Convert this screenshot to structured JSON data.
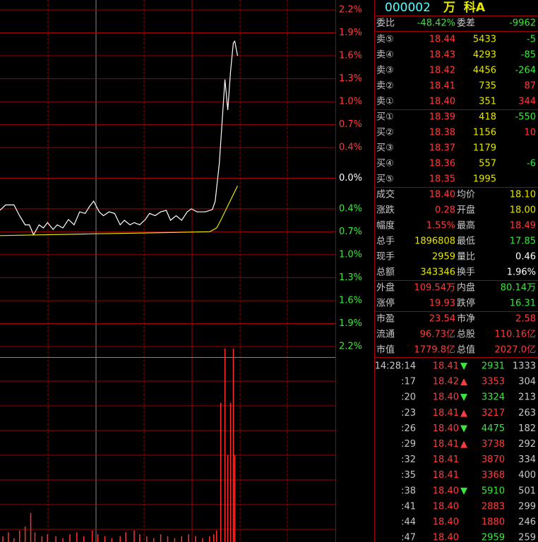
{
  "chart_data": [
    {
      "type": "line",
      "xlim": [
        0,
        240
      ],
      "ylim": [
        -2.2,
        2.2
      ],
      "yticks": [
        {
          "value": 2.2,
          "label": "2.2%"
        },
        {
          "value": 1.9,
          "label": "1.9%"
        },
        {
          "value": 1.6,
          "label": "1.6%"
        },
        {
          "value": 1.3,
          "label": "1.3%"
        },
        {
          "value": 1.0,
          "label": "1.0%"
        },
        {
          "value": 0.7,
          "label": "0.7%"
        },
        {
          "value": 0.4,
          "label": "0.4%"
        },
        {
          "value": 0,
          "label": "0.0%"
        },
        {
          "value": -0.4,
          "label": "0.4%"
        },
        {
          "value": -0.7,
          "label": "0.7%"
        },
        {
          "value": -1.0,
          "label": "1.0%"
        },
        {
          "value": -1.3,
          "label": "1.3%"
        },
        {
          "value": -1.6,
          "label": "1.6%"
        },
        {
          "value": -1.9,
          "label": "1.9%"
        },
        {
          "value": -2.2,
          "label": "2.2%"
        }
      ],
      "grid": true,
      "series": [
        {
          "color": "#ffffff",
          "x": [
            0,
            4,
            10,
            14,
            18,
            21,
            24,
            28,
            31,
            34,
            38,
            41,
            45,
            49,
            53,
            57,
            61,
            64,
            67,
            71,
            74,
            78,
            82,
            86,
            89,
            93,
            96,
            100,
            104,
            107,
            111,
            115,
            119,
            122,
            126,
            130,
            134,
            137,
            141,
            147,
            152,
            154,
            157,
            161,
            163,
            165,
            167,
            168,
            170
          ],
          "values": [
            -0.42,
            -0.35,
            -0.35,
            -0.49,
            -0.61,
            -0.61,
            -0.74,
            -0.61,
            -0.65,
            -0.58,
            -0.67,
            -0.61,
            -0.65,
            -0.54,
            -0.61,
            -0.44,
            -0.46,
            -0.37,
            -0.3,
            -0.44,
            -0.49,
            -0.44,
            -0.46,
            -0.61,
            -0.55,
            -0.61,
            -0.58,
            -0.61,
            -0.54,
            -0.46,
            -0.49,
            -0.44,
            -0.42,
            -0.55,
            -0.49,
            -0.55,
            -0.44,
            -0.4,
            -0.44,
            -0.44,
            -0.41,
            -0.3,
            0.2,
            1.29,
            0.89,
            1.4,
            1.77,
            1.79,
            1.6
          ]
        },
        {
          "color": "#e6e600",
          "x": [
            0,
            60,
            120,
            150,
            155,
            158,
            162,
            166,
            170
          ],
          "values": [
            -0.75,
            -0.73,
            -0.71,
            -0.7,
            -0.65,
            -0.55,
            -0.4,
            -0.25,
            -0.1
          ]
        }
      ]
    },
    {
      "type": "bar",
      "xlim": [
        0,
        240
      ],
      "ylim": [
        0,
        100
      ],
      "color": "#ff3232",
      "x": [
        2,
        6,
        10,
        14,
        18,
        22,
        25,
        30,
        34,
        40,
        45,
        50,
        55,
        60,
        66,
        70,
        75,
        80,
        86,
        90,
        96,
        100,
        105,
        110,
        115,
        120,
        125,
        130,
        135,
        140,
        145,
        150,
        153,
        155,
        158,
        161,
        163,
        165,
        167,
        168
      ],
      "values": [
        3,
        5,
        2,
        6,
        8,
        15,
        5,
        3,
        4,
        3,
        2,
        4,
        5,
        3,
        6,
        4,
        3,
        2,
        3,
        5,
        6,
        4,
        3,
        2,
        4,
        3,
        2,
        3,
        4,
        3,
        2,
        3,
        4,
        6,
        72,
        100,
        45,
        72,
        100,
        45
      ]
    }
  ],
  "quote": {
    "header": {
      "code": "000002",
      "name": "万  科A"
    },
    "committee": {
      "label1": "委比",
      "value1": "-48.42%",
      "label2": "委差",
      "value2": "-9962"
    },
    "book": [
      {
        "label": "卖⑤",
        "price": "18.44",
        "volume": "5433",
        "change": "-5",
        "change_color": "#3ce63c"
      },
      {
        "label": "卖④",
        "price": "18.43",
        "volume": "4293",
        "change": "-85",
        "change_color": "#3ce63c"
      },
      {
        "label": "卖③",
        "price": "18.42",
        "volume": "4456",
        "change": "-264",
        "change_color": "#3ce63c"
      },
      {
        "label": "卖②",
        "price": "18.41",
        "volume": "735",
        "change": "87",
        "change_color": "#ff3c3c"
      },
      {
        "label": "卖①",
        "price": "18.40",
        "volume": "351",
        "change": "344",
        "change_color": "#ff3c3c"
      },
      {
        "label": "买①",
        "price": "18.39",
        "volume": "418",
        "change": "-550",
        "change_color": "#3ce63c"
      },
      {
        "label": "买②",
        "price": "18.38",
        "volume": "1156",
        "change": "10",
        "change_color": "#ff3c3c"
      },
      {
        "label": "买③",
        "price": "18.37",
        "volume": "1179"
      },
      {
        "label": "买④",
        "price": "18.36",
        "volume": "557",
        "change": "-6",
        "change_color": "#3ce63c"
      },
      {
        "label": "买⑤",
        "price": "18.35",
        "volume": "1995"
      }
    ],
    "stats": [
      {
        "label1": "成交",
        "value1": "18.40",
        "color1": "#ff3c3c",
        "label2": "均价",
        "value2": "18.10",
        "color2": "#e6e600"
      },
      {
        "label1": "涨跌",
        "value1": "0.28",
        "color1": "#ff3c3c",
        "label2": "开盘",
        "value2": "18.00",
        "color2": "#e6e600"
      },
      {
        "label1": "幅度",
        "value1": "1.55%",
        "color1": "#ff3c3c",
        "label2": "最高",
        "value2": "18.49",
        "color2": "#ff3c3c"
      },
      {
        "label1": "总手",
        "value1": "1896808",
        "color1": "#e6e600",
        "label2": "最低",
        "value2": "17.85",
        "color2": "#3ce63c"
      },
      {
        "label1": "现手",
        "value1": "2959",
        "color1": "#e6e600",
        "label2": "量比",
        "value2": "0.46",
        "color2": "#ffffff"
      },
      {
        "label1": "总额",
        "value1": "343346",
        "color1": "#e6e600",
        "label2": "换手",
        "value2": "1.96%",
        "color2": "#ffffff"
      },
      {
        "label1": "外盘",
        "value1": "109.54万",
        "color1": "#ff3c3c",
        "label2": "内盘",
        "value2": "80.14万",
        "color2": "#3ce63c"
      },
      {
        "label1": "涨停",
        "value1": "19.93",
        "color1": "#ff3c3c",
        "label2": "跌停",
        "value2": "16.31",
        "color2": "#3ce63c"
      },
      {
        "label1": "市盈",
        "value1": "23.54",
        "color1": "#ff3c3c",
        "label2": "市净",
        "value2": "2.58",
        "color2": "#ff3c3c"
      },
      {
        "label1": "流通",
        "value1": "96.73亿",
        "color1": "#ff3c3c",
        "label2": "总股",
        "value2": "110.16亿",
        "color2": "#ff3c3c"
      },
      {
        "label1": "市值",
        "value1": "1779.8亿",
        "color1": "#ff3c3c",
        "label2": "总值",
        "value2": "2027.0亿",
        "color2": "#ff3c3c"
      }
    ],
    "ticks": [
      {
        "time": "14:28:14",
        "price": "18.41",
        "arrow": "▼",
        "volume": "2931",
        "count": "1333",
        "vol_color": "#3ce63c"
      },
      {
        "time": ":17",
        "price": "18.42",
        "arrow": "▲",
        "volume": "3353",
        "count": "304",
        "vol_color": "#ff3c3c"
      },
      {
        "time": ":20",
        "price": "18.40",
        "arrow": "▼",
        "volume": "3324",
        "count": "213",
        "vol_color": "#3ce63c"
      },
      {
        "time": ":23",
        "price": "18.41",
        "arrow": "▲",
        "volume": "3217",
        "count": "263",
        "vol_color": "#ff3c3c"
      },
      {
        "time": ":26",
        "price": "18.40",
        "arrow": "▼",
        "volume": "4475",
        "count": "182",
        "vol_color": "#3ce63c"
      },
      {
        "time": ":29",
        "price": "18.41",
        "arrow": "▲",
        "volume": "3738",
        "count": "292",
        "vol_color": "#ff3c3c"
      },
      {
        "time": ":32",
        "price": "18.41",
        "volume": "3870",
        "count": "334",
        "vol_color": "#ff3c3c"
      },
      {
        "time": ":35",
        "price": "18.41",
        "volume": "3368",
        "count": "400",
        "vol_color": "#ff3c3c"
      },
      {
        "time": ":38",
        "price": "18.40",
        "arrow": "▼",
        "volume": "5910",
        "count": "501",
        "vol_color": "#3ce63c"
      },
      {
        "time": ":41",
        "price": "18.40",
        "volume": "2883",
        "count": "299",
        "vol_color": "#ff3c3c"
      },
      {
        "time": ":44",
        "price": "18.40",
        "volume": "1880",
        "count": "246",
        "vol_color": "#ff3c3c"
      },
      {
        "time": ":47",
        "price": "18.40",
        "volume": "2959",
        "count": "259",
        "vol_color": "#3ce63c"
      }
    ]
  }
}
